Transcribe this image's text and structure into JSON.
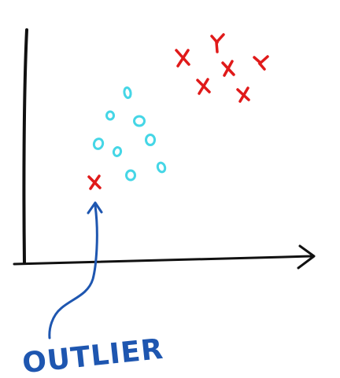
{
  "colors": {
    "axis": "#111111",
    "cross": "#e01a1a",
    "circle": "#45d6e6",
    "annotation": "#1e56b0"
  },
  "annotation": {
    "label": "OUTLIER"
  }
}
